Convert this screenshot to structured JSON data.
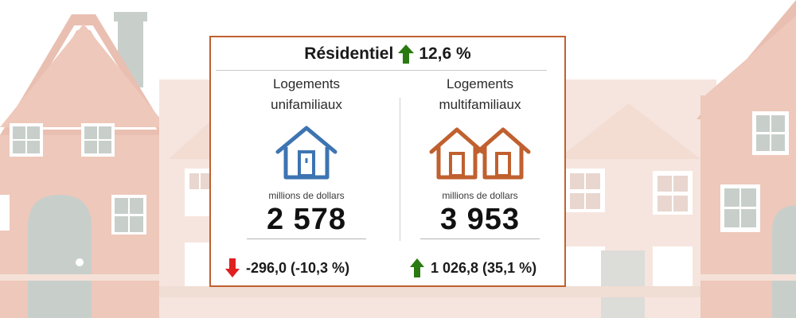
{
  "header": {
    "title": "Résidentiel",
    "change": "12,6 %",
    "trend": "up"
  },
  "single_family": {
    "title_line1": "Logements",
    "title_line2": "unifamiliaux",
    "icon": "house-icon",
    "units": "millions de dollars",
    "value": "2 578",
    "change": "-296,0 (-10,3 %)",
    "trend": "down"
  },
  "multi_family": {
    "title_line1": "Logements",
    "title_line2": "multifamiliaux",
    "icon": "double-house-icon",
    "units": "millions de dollars",
    "value": "3 953",
    "change": "1 026,8 (35,1 %)",
    "trend": "up"
  },
  "colors": {
    "border": "#c0602f",
    "up_arrow": "#2a7a12",
    "down_arrow": "#e01f1f",
    "single_icon": "#3d74b2",
    "multi_icon": "#c0602f"
  }
}
